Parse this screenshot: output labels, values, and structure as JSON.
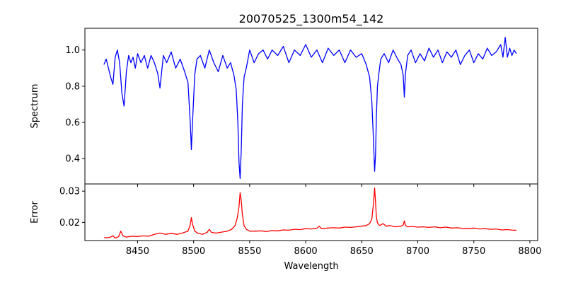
{
  "chart_data": [
    {
      "type": "line",
      "title": "20070525_1300m54_142",
      "xlabel": "",
      "ylabel": "Spectrum",
      "xlim": [
        8403,
        8807
      ],
      "ylim": [
        0.26,
        1.12
      ],
      "xticks": [
        8450,
        8500,
        8550,
        8600,
        8650,
        8700,
        8750,
        8800
      ],
      "yticks": [
        0.4,
        0.6,
        0.8,
        1.0
      ],
      "ytick_labels": [
        "0.4",
        "0.6",
        "0.8",
        "1.0"
      ],
      "xtick_labels_visible": false,
      "grid": false,
      "series": [
        {
          "color": "#0000ff",
          "x": [
            8420,
            8422,
            8424,
            8426,
            8428,
            8430,
            8432,
            8434,
            8436,
            8438,
            8440,
            8442,
            8444,
            8446,
            8448,
            8450,
            8453,
            8456,
            8459,
            8462,
            8465,
            8468,
            8470,
            8473,
            8476,
            8480,
            8484,
            8488,
            8492,
            8495,
            8497,
            8498,
            8499,
            8501,
            8503,
            8506,
            8510,
            8514,
            8518,
            8522,
            8526,
            8530,
            8533,
            8536,
            8538,
            8539.5,
            8540.5,
            8541.5,
            8542.5,
            8543.5,
            8545,
            8547,
            8550,
            8554,
            8558,
            8562,
            8566,
            8570,
            8575,
            8580,
            8585,
            8590,
            8595,
            8600,
            8605,
            8610,
            8615,
            8620,
            8625,
            8630,
            8635,
            8640,
            8645,
            8650,
            8654,
            8657,
            8659,
            8660.5,
            8661.5,
            8662.3,
            8663,
            8664,
            8665.5,
            8667,
            8670,
            8674,
            8678,
            8682,
            8685,
            8687,
            8688,
            8689,
            8691,
            8694,
            8698,
            8702,
            8706,
            8710,
            8714,
            8718,
            8722,
            8726,
            8730,
            8734,
            8738,
            8742,
            8746,
            8750,
            8754,
            8758,
            8762,
            8766,
            8770,
            8774,
            8776,
            8778,
            8780,
            8782,
            8784,
            8786,
            8788
          ],
          "y": [
            0.92,
            0.95,
            0.9,
            0.85,
            0.81,
            0.96,
            1.0,
            0.93,
            0.76,
            0.69,
            0.88,
            0.97,
            0.93,
            0.96,
            0.9,
            0.98,
            0.93,
            0.97,
            0.9,
            0.97,
            0.93,
            0.87,
            0.79,
            0.97,
            0.93,
            0.99,
            0.9,
            0.95,
            0.88,
            0.82,
            0.6,
            0.45,
            0.6,
            0.86,
            0.95,
            0.97,
            0.9,
            1.0,
            0.93,
            0.88,
            0.97,
            0.9,
            0.93,
            0.86,
            0.78,
            0.6,
            0.38,
            0.29,
            0.45,
            0.7,
            0.85,
            0.9,
            1.0,
            0.93,
            0.98,
            1.0,
            0.95,
            1.0,
            0.97,
            1.02,
            0.93,
            1.0,
            0.97,
            1.03,
            0.96,
            1.0,
            0.93,
            1.01,
            0.97,
            1.0,
            0.93,
            1.0,
            0.96,
            0.98,
            0.92,
            0.85,
            0.72,
            0.5,
            0.33,
            0.42,
            0.62,
            0.8,
            0.88,
            0.95,
            0.98,
            0.93,
            1.0,
            0.95,
            0.92,
            0.86,
            0.74,
            0.87,
            0.97,
            1.0,
            0.93,
            0.98,
            0.94,
            1.01,
            0.96,
            1.0,
            0.93,
            0.99,
            0.96,
            1.0,
            0.92,
            0.97,
            1.0,
            0.93,
            0.98,
            0.95,
            1.01,
            0.97,
            0.99,
            1.03,
            0.96,
            1.07,
            0.96,
            1.01,
            0.97,
            1.0,
            0.98
          ]
        }
      ]
    },
    {
      "type": "line",
      "title": "",
      "xlabel": "Wavelength",
      "ylabel": "Error",
      "xlim": [
        8403,
        8807
      ],
      "ylim": [
        0.0142,
        0.0323
      ],
      "xticks": [
        8450,
        8500,
        8550,
        8600,
        8650,
        8700,
        8750,
        8800
      ],
      "xtick_labels": [
        "8450",
        "8500",
        "8550",
        "8600",
        "8650",
        "8700",
        "8750",
        "8800"
      ],
      "yticks": [
        0.02,
        0.03
      ],
      "ytick_labels": [
        "0.02",
        "0.03"
      ],
      "grid": false,
      "series": [
        {
          "color": "#ff0000",
          "x": [
            8420,
            8425,
            8428,
            8430,
            8433,
            8435,
            8437,
            8440,
            8445,
            8450,
            8455,
            8460,
            8465,
            8470,
            8475,
            8480,
            8485,
            8490,
            8495,
            8497,
            8498,
            8499,
            8501,
            8504,
            8508,
            8512,
            8514,
            8516,
            8520,
            8525,
            8530,
            8534,
            8537,
            8539,
            8540.5,
            8541.5,
            8542.5,
            8543.5,
            8545,
            8547,
            8550,
            8555,
            8560,
            8565,
            8570,
            8575,
            8580,
            8585,
            8590,
            8595,
            8600,
            8605,
            8610,
            8612,
            8614,
            8620,
            8625,
            8630,
            8635,
            8640,
            8645,
            8650,
            8654,
            8657,
            8659,
            8660.5,
            8661.5,
            8662.3,
            8663,
            8664,
            8666,
            8669,
            8672,
            8675,
            8680,
            8685,
            8687,
            8688,
            8689,
            8691,
            8695,
            8700,
            8705,
            8710,
            8715,
            8720,
            8725,
            8730,
            8735,
            8740,
            8745,
            8750,
            8755,
            8760,
            8765,
            8770,
            8775,
            8780,
            8785,
            8788
          ],
          "y": [
            0.0151,
            0.0152,
            0.0157,
            0.015,
            0.0154,
            0.0172,
            0.0157,
            0.0153,
            0.0156,
            0.0155,
            0.0157,
            0.0156,
            0.0162,
            0.0166,
            0.0162,
            0.0165,
            0.0162,
            0.0166,
            0.0172,
            0.0192,
            0.0215,
            0.0195,
            0.0172,
            0.0165,
            0.0162,
            0.0168,
            0.0178,
            0.0168,
            0.0166,
            0.0169,
            0.0172,
            0.0178,
            0.019,
            0.0215,
            0.025,
            0.0295,
            0.027,
            0.0225,
            0.019,
            0.0178,
            0.0172,
            0.0172,
            0.0173,
            0.0171,
            0.0174,
            0.0173,
            0.0176,
            0.0175,
            0.0178,
            0.0177,
            0.018,
            0.0179,
            0.0181,
            0.0188,
            0.018,
            0.0182,
            0.0183,
            0.0182,
            0.0185,
            0.0184,
            0.0186,
            0.0188,
            0.019,
            0.0196,
            0.021,
            0.026,
            0.031,
            0.0265,
            0.022,
            0.0198,
            0.019,
            0.0196,
            0.0188,
            0.019,
            0.0186,
            0.0188,
            0.0192,
            0.0205,
            0.019,
            0.0186,
            0.0187,
            0.0185,
            0.0186,
            0.0184,
            0.0186,
            0.0183,
            0.0185,
            0.0182,
            0.0183,
            0.0181,
            0.018,
            0.0182,
            0.0179,
            0.018,
            0.0178,
            0.0179,
            0.0176,
            0.0177,
            0.0175,
            0.0175
          ]
        }
      ]
    }
  ]
}
